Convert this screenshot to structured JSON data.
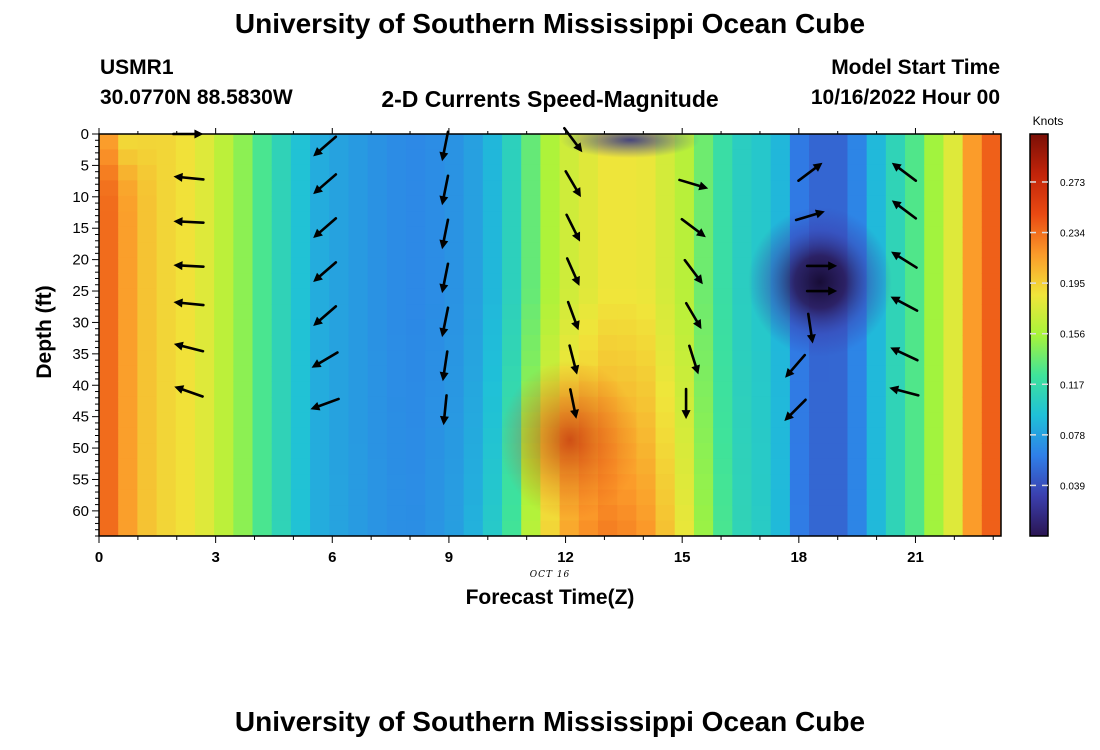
{
  "titles": {
    "top": "University of Southern Mississippi Ocean Cube",
    "bottom": "University of Southern Mississippi Ocean Cube"
  },
  "header": {
    "station_id": "USMR1",
    "coords": "30.0770N  88.5830W",
    "plot_title": "2-D Currents Speed-Magnitude",
    "start_label": "Model Start Time",
    "start_value": "10/16/2022 Hour 00"
  },
  "chart_data": {
    "type": "heatmap",
    "title": "2-D Currents Speed-Magnitude",
    "xlabel": "Forecast Time(Z)",
    "ylabel": "Depth (ft)",
    "date_label": "OCT 16",
    "xlim": [
      0,
      23.2
    ],
    "ylim": [
      0,
      64
    ],
    "y_inverted": true,
    "x_ticks": [
      0,
      3,
      6,
      9,
      12,
      15,
      18,
      21
    ],
    "y_ticks": [
      0,
      5,
      10,
      15,
      20,
      25,
      30,
      35,
      40,
      45,
      50,
      55,
      60
    ],
    "colorbar": {
      "title": "Knots",
      "min": 0,
      "max": 0.31,
      "ticks": [
        0.273,
        0.234,
        0.195,
        0.156,
        0.117,
        0.078,
        0.039
      ],
      "colors": [
        "#2a1552",
        "#3b3fae",
        "#2f7fe8",
        "#1fc0d8",
        "#3fe39a",
        "#a7f43a",
        "#f0e53a",
        "#fb9b2a",
        "#ea4a12",
        "#c2240a",
        "#7a0f06"
      ]
    },
    "speed_profile": [
      {
        "t": 0.0,
        "s": 0.245
      },
      {
        "t": 0.5,
        "s": 0.225
      },
      {
        "t": 1.0,
        "s": 0.205
      },
      {
        "t": 1.5,
        "s": 0.195
      },
      {
        "t": 2.0,
        "s": 0.19
      },
      {
        "t": 2.5,
        "s": 0.185
      },
      {
        "t": 3.0,
        "s": 0.17
      },
      {
        "t": 3.5,
        "s": 0.155
      },
      {
        "t": 4.0,
        "s": 0.135
      },
      {
        "t": 4.5,
        "s": 0.115
      },
      {
        "t": 5.0,
        "s": 0.1
      },
      {
        "t": 5.5,
        "s": 0.085
      },
      {
        "t": 6.0,
        "s": 0.08
      },
      {
        "t": 7.0,
        "s": 0.072
      },
      {
        "t": 8.0,
        "s": 0.066
      },
      {
        "t": 9.0,
        "s": 0.07
      },
      {
        "t": 9.5,
        "s": 0.075
      },
      {
        "t": 10.0,
        "s": 0.085
      },
      {
        "t": 10.5,
        "s": 0.1
      },
      {
        "t": 11.0,
        "s": 0.13
      },
      {
        "t": 11.5,
        "s": 0.155
      },
      {
        "t": 12.0,
        "s": 0.17
      },
      {
        "t": 13.0,
        "s": 0.185
      },
      {
        "t": 14.0,
        "s": 0.185
      },
      {
        "t": 15.0,
        "s": 0.165
      },
      {
        "t": 15.5,
        "s": 0.14
      },
      {
        "t": 16.0,
        "s": 0.12
      },
      {
        "t": 16.5,
        "s": 0.105
      },
      {
        "t": 17.0,
        "s": 0.1
      },
      {
        "t": 17.5,
        "s": 0.09
      },
      {
        "t": 18.0,
        "s": 0.06
      },
      {
        "t": 18.5,
        "s": 0.05
      },
      {
        "t": 19.0,
        "s": 0.05
      },
      {
        "t": 19.5,
        "s": 0.065
      },
      {
        "t": 20.0,
        "s": 0.09
      },
      {
        "t": 20.5,
        "s": 0.11
      },
      {
        "t": 21.0,
        "s": 0.13
      },
      {
        "t": 21.5,
        "s": 0.155
      },
      {
        "t": 22.0,
        "s": 0.18
      },
      {
        "t": 22.5,
        "s": 0.22
      },
      {
        "t": 23.2,
        "s": 0.25
      }
    ],
    "vectors": [
      {
        "t": 2.3,
        "d": 0,
        "u": 1.0,
        "v": 0.0
      },
      {
        "t": 2.3,
        "d": 7,
        "u": -1.0,
        "v": 0.1
      },
      {
        "t": 2.3,
        "d": 14,
        "u": -1.0,
        "v": 0.05
      },
      {
        "t": 2.3,
        "d": 21,
        "u": -1.0,
        "v": 0.05
      },
      {
        "t": 2.3,
        "d": 27,
        "u": -1.0,
        "v": 0.1
      },
      {
        "t": 2.3,
        "d": 34,
        "u": -1.0,
        "v": 0.25
      },
      {
        "t": 2.3,
        "d": 41,
        "u": -1.0,
        "v": 0.35
      },
      {
        "t": 5.8,
        "d": 2,
        "u": -0.75,
        "v": -0.65
      },
      {
        "t": 5.8,
        "d": 8,
        "u": -0.75,
        "v": -0.65
      },
      {
        "t": 5.8,
        "d": 15,
        "u": -0.75,
        "v": -0.65
      },
      {
        "t": 5.8,
        "d": 22,
        "u": -0.75,
        "v": -0.65
      },
      {
        "t": 5.8,
        "d": 29,
        "u": -0.75,
        "v": -0.65
      },
      {
        "t": 5.8,
        "d": 36,
        "u": -0.85,
        "v": -0.5
      },
      {
        "t": 5.8,
        "d": 43,
        "u": -0.95,
        "v": -0.35
      },
      {
        "t": 8.9,
        "d": 2,
        "u": -0.2,
        "v": -1.0
      },
      {
        "t": 8.9,
        "d": 9,
        "u": -0.2,
        "v": -1.0
      },
      {
        "t": 8.9,
        "d": 16,
        "u": -0.2,
        "v": -1.0
      },
      {
        "t": 8.9,
        "d": 23,
        "u": -0.2,
        "v": -1.0
      },
      {
        "t": 8.9,
        "d": 30,
        "u": -0.2,
        "v": -1.0
      },
      {
        "t": 8.9,
        "d": 37,
        "u": -0.15,
        "v": -1.0
      },
      {
        "t": 8.9,
        "d": 44,
        "u": -0.1,
        "v": -1.0
      },
      {
        "t": 12.2,
        "d": 1,
        "u": 0.6,
        "v": -0.8
      },
      {
        "t": 12.2,
        "d": 8,
        "u": 0.5,
        "v": -0.85
      },
      {
        "t": 12.2,
        "d": 15,
        "u": 0.45,
        "v": -0.9
      },
      {
        "t": 12.2,
        "d": 22,
        "u": 0.4,
        "v": -0.9
      },
      {
        "t": 12.2,
        "d": 29,
        "u": 0.35,
        "v": -0.95
      },
      {
        "t": 12.2,
        "d": 36,
        "u": 0.25,
        "v": -0.97
      },
      {
        "t": 12.2,
        "d": 43,
        "u": 0.2,
        "v": -0.98
      },
      {
        "t": 15.3,
        "d": 8,
        "u": 1.0,
        "v": -0.3
      },
      {
        "t": 15.3,
        "d": 15,
        "u": 0.8,
        "v": -0.6
      },
      {
        "t": 15.3,
        "d": 22,
        "u": 0.6,
        "v": -0.8
      },
      {
        "t": 15.3,
        "d": 29,
        "u": 0.5,
        "v": -0.85
      },
      {
        "t": 15.3,
        "d": 36,
        "u": 0.3,
        "v": -0.95
      },
      {
        "t": 15.1,
        "d": 43,
        "u": 0.0,
        "v": -1.0
      },
      {
        "t": 18.3,
        "d": 6,
        "u": 0.8,
        "v": 0.6
      },
      {
        "t": 18.3,
        "d": 13,
        "u": 1.0,
        "v": 0.3
      },
      {
        "t": 18.6,
        "d": 21,
        "u": 1.0,
        "v": 0.0
      },
      {
        "t": 18.6,
        "d": 25,
        "u": 1.0,
        "v": 0.0
      },
      {
        "t": 18.3,
        "d": 31,
        "u": 0.15,
        "v": -1.0
      },
      {
        "t": 17.9,
        "d": 37,
        "u": -0.65,
        "v": -0.75
      },
      {
        "t": 17.9,
        "d": 44,
        "u": -0.7,
        "v": -0.7
      },
      {
        "t": 20.7,
        "d": 6,
        "u": -0.8,
        "v": 0.6
      },
      {
        "t": 20.7,
        "d": 12,
        "u": -0.8,
        "v": 0.6
      },
      {
        "t": 20.7,
        "d": 20,
        "u": -0.8,
        "v": 0.5
      },
      {
        "t": 20.7,
        "d": 27,
        "u": -0.85,
        "v": 0.45
      },
      {
        "t": 20.7,
        "d": 35,
        "u": -0.85,
        "v": 0.4
      },
      {
        "t": 20.7,
        "d": 41,
        "u": -0.95,
        "v": 0.25
      }
    ]
  }
}
